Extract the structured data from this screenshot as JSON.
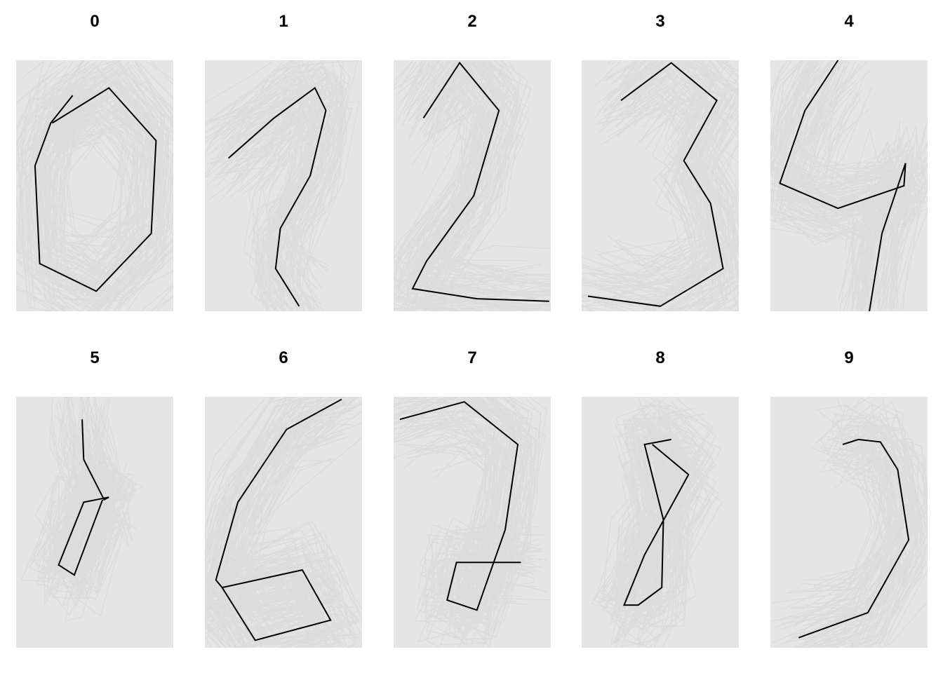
{
  "chart_data": {
    "type": "line",
    "layout": "2x5 small multiples",
    "axes_visible": false,
    "grid": false,
    "panel_background": "#e5e5e5",
    "background_curve_color": "#dcdcdc",
    "highlight_color": "#000000",
    "xlim": [
      0,
      100
    ],
    "ylim": [
      0,
      100
    ],
    "panels": [
      {
        "title": "0",
        "highlight": {
          "x": [
            36,
            22,
            12,
            15,
            51,
            86,
            89,
            59,
            23
          ],
          "y": [
            86,
            75,
            58,
            19,
            8,
            31,
            68,
            89,
            75
          ]
        }
      },
      {
        "title": "1",
        "highlight": {
          "x": [
            15,
            44,
            70,
            77,
            67,
            48,
            45,
            60
          ],
          "y": [
            61,
            77,
            89,
            80,
            54,
            33,
            17,
            2
          ]
        }
      },
      {
        "title": "2",
        "highlight": {
          "x": [
            19,
            42,
            67,
            51,
            21,
            12,
            53,
            99
          ],
          "y": [
            77,
            99,
            80,
            46,
            20,
            9,
            5,
            4
          ]
        }
      },
      {
        "title": "3",
        "highlight": {
          "x": [
            25,
            57,
            86,
            65,
            82,
            90,
            50,
            4
          ],
          "y": [
            84,
            99,
            84,
            60,
            43,
            17,
            2,
            6
          ]
        }
      },
      {
        "title": "4",
        "highlight": {
          "x": [
            43,
            22,
            6,
            43,
            85,
            86,
            71,
            63
          ],
          "y": [
            100,
            80,
            51,
            41,
            50,
            59,
            31,
            0
          ]
        }
      },
      {
        "title": "5",
        "highlight": {
          "x": [
            42,
            43,
            56,
            59,
            43,
            27,
            37,
            55
          ],
          "y": [
            91,
            75,
            59,
            60,
            58,
            33,
            29,
            59
          ]
        }
      },
      {
        "title": "6",
        "highlight": {
          "x": [
            87,
            52,
            21,
            7,
            11,
            32,
            80,
            62,
            11
          ],
          "y": [
            99,
            87,
            58,
            27,
            24,
            3,
            11,
            31,
            24
          ]
        }
      },
      {
        "title": "7",
        "highlight": {
          "x": [
            4,
            45,
            79,
            71,
            53,
            34,
            40,
            81
          ],
          "y": [
            91,
            98,
            81,
            47,
            15,
            19,
            34,
            34
          ]
        }
      },
      {
        "title": "8",
        "highlight": {
          "x": [
            57,
            40,
            52,
            51,
            36,
            27,
            40,
            68,
            45
          ],
          "y": [
            83,
            81,
            51,
            24,
            17,
            17,
            37,
            69,
            81
          ]
        }
      },
      {
        "title": "9",
        "highlight": {
          "x": [
            46,
            56,
            70,
            81,
            88,
            62,
            18
          ],
          "y": [
            81,
            83,
            82,
            71,
            43,
            14,
            4
          ]
        }
      }
    ]
  }
}
